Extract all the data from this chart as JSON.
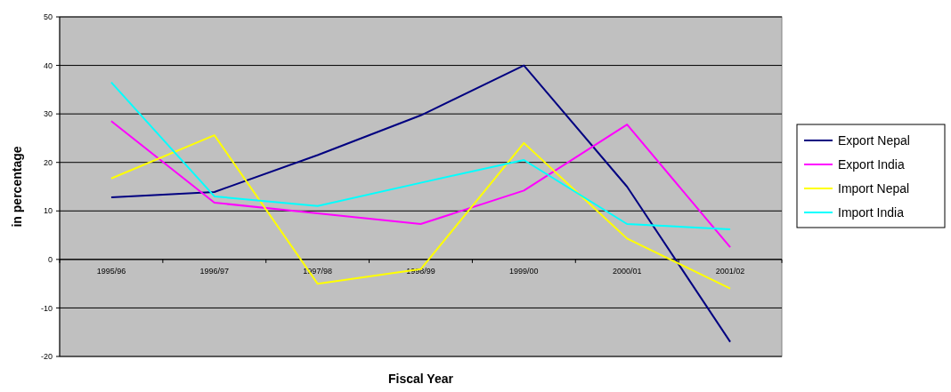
{
  "chart_data": {
    "type": "line",
    "xlabel": "Fiscal Year",
    "ylabel": "in percentage",
    "categories": [
      "1995/96",
      "1996/97",
      "1997/98",
      "1998/99",
      "1999/00",
      "2000/01",
      "2001/02"
    ],
    "series": [
      {
        "name": "Export Nepal",
        "color": "#000080",
        "values": [
          12.8,
          13.9,
          21.5,
          29.7,
          40,
          15,
          -17
        ]
      },
      {
        "name": "Export India",
        "color": "#ff00ff",
        "values": [
          28.5,
          11.7,
          9.5,
          7.3,
          14.2,
          27.8,
          2.5
        ]
      },
      {
        "name": "Import Nepal",
        "color": "#ffff00",
        "values": [
          16.7,
          25.6,
          -5,
          -2,
          24,
          4.3,
          -6
        ]
      },
      {
        "name": "Import India",
        "color": "#00ffff",
        "values": [
          36.5,
          13,
          11,
          15.8,
          20.5,
          7.3,
          6.2
        ]
      }
    ],
    "ylim": [
      -20,
      50
    ],
    "yticks": [
      -20,
      -10,
      0,
      10,
      20,
      30,
      40,
      50
    ],
    "grid": "y",
    "legend": "right",
    "marker": "none",
    "line_style": "solid"
  }
}
